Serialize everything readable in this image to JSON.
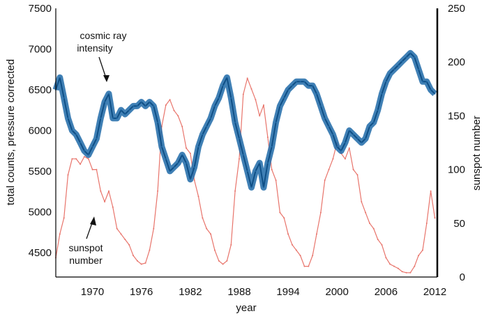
{
  "chart_data": {
    "type": "line",
    "xlabel": "year",
    "ylabel_left": "total counts, pressure corrected",
    "ylabel_right": "sunspot number",
    "x_range": [
      1965.5,
      2012.3
    ],
    "y_left_range": [
      4200,
      7500
    ],
    "y_right_range": [
      0,
      250
    ],
    "x_ticks": [
      1970,
      1976,
      1982,
      1988,
      1994,
      2000,
      2006,
      2012
    ],
    "y_left_ticks": [
      4500,
      5000,
      5500,
      6000,
      6500,
      7000,
      7500
    ],
    "y_right_ticks": [
      0,
      50,
      100,
      150,
      200,
      250
    ],
    "series": [
      {
        "name": "cosmic ray intensity",
        "axis": "left",
        "color": "#1f6aa8",
        "x": [
          1965.5,
          1966.0,
          1966.5,
          1967.0,
          1967.5,
          1968.0,
          1968.5,
          1969.0,
          1969.5,
          1970.0,
          1970.5,
          1971.0,
          1971.5,
          1972.0,
          1972.5,
          1973.0,
          1973.5,
          1974.0,
          1974.5,
          1975.0,
          1975.5,
          1976.0,
          1976.5,
          1977.0,
          1977.5,
          1978.0,
          1978.5,
          1979.0,
          1979.5,
          1980.0,
          1980.5,
          1981.0,
          1981.5,
          1982.0,
          1982.5,
          1983.0,
          1983.5,
          1984.0,
          1984.5,
          1985.0,
          1985.5,
          1986.0,
          1986.5,
          1987.0,
          1987.5,
          1988.0,
          1988.5,
          1989.0,
          1989.5,
          1990.0,
          1990.5,
          1991.0,
          1991.5,
          1992.0,
          1992.5,
          1993.0,
          1993.5,
          1994.0,
          1994.5,
          1995.0,
          1995.5,
          1996.0,
          1996.5,
          1997.0,
          1997.5,
          1998.0,
          1998.5,
          1999.0,
          1999.5,
          2000.0,
          2000.5,
          2001.0,
          2001.5,
          2002.0,
          2002.5,
          2003.0,
          2003.5,
          2004.0,
          2004.5,
          2005.0,
          2005.5,
          2006.0,
          2006.5,
          2007.0,
          2007.5,
          2008.0,
          2008.5,
          2009.0,
          2009.5,
          2010.0,
          2010.5,
          2011.0,
          2011.5,
          2012.0
        ],
        "values": [
          6500,
          6650,
          6400,
          6150,
          6000,
          5950,
          5850,
          5750,
          5700,
          5800,
          5900,
          6150,
          6350,
          6450,
          6150,
          6150,
          6250,
          6200,
          6250,
          6300,
          6300,
          6350,
          6300,
          6350,
          6300,
          6100,
          5800,
          5650,
          5500,
          5550,
          5600,
          5700,
          5600,
          5400,
          5550,
          5800,
          5950,
          6050,
          6150,
          6300,
          6400,
          6550,
          6650,
          6400,
          6100,
          5900,
          5700,
          5500,
          5300,
          5500,
          5600,
          5300,
          5600,
          5800,
          6100,
          6300,
          6400,
          6500,
          6550,
          6600,
          6600,
          6600,
          6550,
          6550,
          6450,
          6300,
          6150,
          6050,
          5950,
          5800,
          5750,
          5850,
          6000,
          5950,
          5900,
          5850,
          5900,
          6050,
          6100,
          6250,
          6450,
          6600,
          6700,
          6750,
          6800,
          6850,
          6900,
          6950,
          6900,
          6750,
          6600,
          6600,
          6500,
          6450
        ]
      },
      {
        "name": "sunspot number",
        "axis": "right",
        "color": "#e8746b",
        "x": [
          1965.5,
          1966.0,
          1966.5,
          1967.0,
          1967.5,
          1968.0,
          1968.5,
          1969.0,
          1969.5,
          1970.0,
          1970.5,
          1971.0,
          1971.5,
          1972.0,
          1972.5,
          1973.0,
          1973.5,
          1974.0,
          1974.5,
          1975.0,
          1975.5,
          1976.0,
          1976.5,
          1977.0,
          1977.5,
          1978.0,
          1978.5,
          1979.0,
          1979.5,
          1980.0,
          1980.5,
          1981.0,
          1981.5,
          1982.0,
          1982.5,
          1983.0,
          1983.5,
          1984.0,
          1984.5,
          1985.0,
          1985.5,
          1986.0,
          1986.5,
          1987.0,
          1987.5,
          1988.0,
          1988.5,
          1989.0,
          1989.5,
          1990.0,
          1990.5,
          1991.0,
          1991.5,
          1992.0,
          1992.5,
          1993.0,
          1993.5,
          1994.0,
          1994.5,
          1995.0,
          1995.5,
          1996.0,
          1996.5,
          1997.0,
          1997.5,
          1998.0,
          1998.5,
          1999.0,
          1999.5,
          2000.0,
          2000.5,
          2001.0,
          2001.5,
          2002.0,
          2002.5,
          2003.0,
          2003.5,
          2004.0,
          2004.5,
          2005.0,
          2005.5,
          2006.0,
          2006.5,
          2007.0,
          2007.5,
          2008.0,
          2008.5,
          2009.0,
          2009.5,
          2010.0,
          2010.5,
          2011.0,
          2011.5,
          2012.0
        ],
        "values": [
          18,
          40,
          55,
          95,
          110,
          110,
          105,
          112,
          110,
          100,
          100,
          80,
          70,
          80,
          65,
          45,
          40,
          35,
          30,
          20,
          15,
          12,
          13,
          25,
          45,
          80,
          140,
          160,
          165,
          155,
          150,
          140,
          120,
          115,
          90,
          75,
          55,
          45,
          40,
          25,
          15,
          12,
          15,
          30,
          80,
          110,
          170,
          185,
          175,
          165,
          150,
          160,
          130,
          100,
          90,
          60,
          55,
          40,
          30,
          25,
          20,
          10,
          10,
          20,
          40,
          60,
          90,
          100,
          110,
          125,
          115,
          110,
          120,
          100,
          95,
          70,
          60,
          50,
          45,
          35,
          30,
          18,
          12,
          10,
          8,
          5,
          4,
          4,
          10,
          20,
          25,
          50,
          80,
          55
        ]
      }
    ],
    "annotations": [
      {
        "text_lines": [
          "cosmic ray",
          "intensity"
        ],
        "target_series": "cosmic ray intensity"
      },
      {
        "text_lines": [
          "sunspot",
          "number"
        ],
        "target_series": "sunspot number"
      }
    ]
  }
}
